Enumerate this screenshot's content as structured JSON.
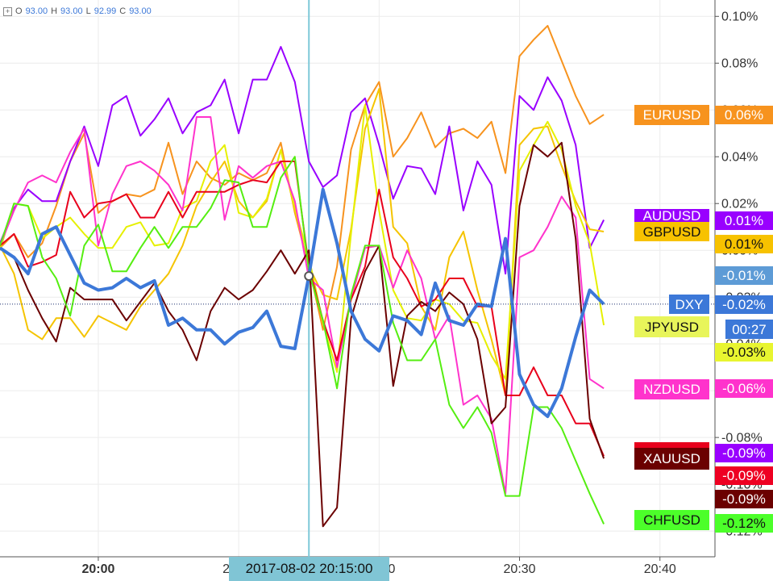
{
  "ohlc": [
    {
      "label": "O",
      "value": "93.00"
    },
    {
      "label": "H",
      "value": "93.00"
    },
    {
      "label": "L",
      "value": "92.99"
    },
    {
      "label": "C",
      "value": "93.00"
    }
  ],
  "crosshair_label": "2017-08-02 20:15:00",
  "countdown": "00:27",
  "name_tags": [
    "EURUSD",
    "AUDUSD",
    "GBPUSD",
    "DXY",
    "JPYUSD",
    "NZDUSD",
    "XAUUSD",
    "CHFUSD"
  ],
  "value_tags": [
    "0.06%",
    "0.01%",
    "0.01%",
    "-0.01%",
    "-0.02%",
    "-0.03%",
    "-0.06%",
    "-0.09%",
    "-0.09%",
    "-0.09%",
    "-0.12%"
  ],
  "chart_data": {
    "type": "line",
    "categories": [
      "19:53",
      "19:54",
      "19:55",
      "19:56",
      "19:57",
      "19:58",
      "19:59",
      "20:00",
      "20:01",
      "20:02",
      "20:03",
      "20:04",
      "20:05",
      "20:06",
      "20:07",
      "20:08",
      "20:09",
      "20:10",
      "20:11",
      "20:12",
      "20:13",
      "20:14",
      "20:15",
      "20:16",
      "20:17",
      "20:18",
      "20:19",
      "20:20",
      "20:21",
      "20:22",
      "20:23",
      "20:24",
      "20:25",
      "20:26",
      "20:27",
      "20:28",
      "20:29",
      "20:30",
      "20:31",
      "20:32",
      "20:33",
      "20:34",
      "20:35",
      "20:36"
    ],
    "xticks": [
      "20:00",
      "20:10",
      "20:20",
      "20:30",
      "20:40"
    ],
    "ylim": [
      -0.131,
      0.107
    ],
    "yticks": [
      {
        "value": 0.1,
        "label": "0.10%"
      },
      {
        "value": 0.08,
        "label": "0.08%"
      },
      {
        "value": 0.06,
        "label": "0.06%"
      },
      {
        "value": 0.04,
        "label": "0.04%"
      },
      {
        "value": 0.02,
        "label": "0.02%"
      },
      {
        "value": 0,
        "label": "0.00%"
      },
      {
        "value": -0.02,
        "label": "-0.02%"
      },
      {
        "value": -0.04,
        "label": "-0.04%"
      },
      {
        "value": -0.06,
        "label": "-0.06%"
      },
      {
        "value": -0.08,
        "label": "-0.08%"
      },
      {
        "value": -0.1,
        "label": "-0.10%"
      },
      {
        "value": -0.12,
        "label": "-0.12%"
      }
    ],
    "grid": true,
    "series": [
      {
        "name": "EURUSD",
        "color": "#f7931e",
        "values": [
          0.001,
          0.007,
          -0.003,
          0.003,
          0.019,
          0.038,
          0.05,
          0.016,
          0.021,
          0.024,
          0.023,
          0.026,
          0.046,
          0.024,
          0.038,
          0.031,
          0.028,
          0.033,
          0.03,
          0.033,
          0.046,
          0.016,
          -0.007,
          -0.034,
          -0.007,
          0.043,
          0.062,
          0.072,
          0.04,
          0.048,
          0.059,
          0.044,
          0.05,
          0.052,
          0.048,
          0.055,
          0.033,
          0.083,
          0.09,
          0.096,
          0.081,
          0.066,
          0.054,
          0.058
        ]
      },
      {
        "name": "AUDUSD",
        "color": "#9900ff",
        "values": [
          0.003,
          0.018,
          0.026,
          0.021,
          0.021,
          0.038,
          0.053,
          0.036,
          0.062,
          0.066,
          0.049,
          0.056,
          0.065,
          0.05,
          0.059,
          0.062,
          0.073,
          0.05,
          0.073,
          0.073,
          0.087,
          0.072,
          0.038,
          0.027,
          0.032,
          0.059,
          0.065,
          0.045,
          0.022,
          0.036,
          0.035,
          0.024,
          0.053,
          0.017,
          0.038,
          0.028,
          -0.01,
          0.066,
          0.06,
          0.074,
          0.064,
          0.045,
          0.001,
          0.013
        ]
      },
      {
        "name": "GBPUSD",
        "color": "#f5c400",
        "values": [
          0.002,
          -0.01,
          -0.034,
          -0.038,
          -0.029,
          -0.029,
          -0.037,
          -0.028,
          -0.031,
          -0.034,
          -0.024,
          -0.017,
          -0.01,
          0.002,
          0.019,
          0.029,
          0.038,
          0.021,
          0.014,
          0.021,
          0.043,
          0.017,
          -0.007,
          -0.019,
          -0.021,
          0.009,
          0.052,
          0.069,
          0.01,
          0.003,
          -0.024,
          -0.034,
          -0.003,
          0.008,
          -0.017,
          -0.038,
          -0.062,
          0.045,
          0.052,
          0.053,
          0.036,
          0.021,
          0.009,
          0.008
        ]
      },
      {
        "name": "JPYUSD",
        "color": "#e6f000",
        "values": [
          0.0,
          0.02,
          0.019,
          0.005,
          0.01,
          0.014,
          0.007,
          0.001,
          0.001,
          0.01,
          0.012,
          0.002,
          0.003,
          0.018,
          0.021,
          0.038,
          0.045,
          0.016,
          0.014,
          0.022,
          0.043,
          0.018,
          -0.003,
          -0.031,
          -0.052,
          0.007,
          0.062,
          0.017,
          -0.017,
          -0.029,
          -0.03,
          -0.021,
          -0.023,
          -0.03,
          -0.031,
          -0.045,
          -0.055,
          0.034,
          0.045,
          0.055,
          0.043,
          0.019,
          0.003,
          -0.032
        ]
      },
      {
        "name": "NZDUSD",
        "color": "#ff33cc",
        "values": [
          0.002,
          0.017,
          0.029,
          0.032,
          0.029,
          0.042,
          0.052,
          0.002,
          0.024,
          0.036,
          0.038,
          0.034,
          0.028,
          0.017,
          0.057,
          0.057,
          0.013,
          0.036,
          0.031,
          0.036,
          0.038,
          0.021,
          -0.012,
          -0.017,
          -0.05,
          -0.021,
          0.001,
          0.002,
          -0.016,
          0.0,
          -0.012,
          -0.038,
          -0.028,
          -0.066,
          -0.062,
          -0.072,
          -0.104,
          -0.003,
          0.0,
          0.01,
          0.023,
          0.014,
          -0.055,
          -0.059
        ]
      },
      {
        "color": "#e8001c",
        "values": [
          0.002,
          0.007,
          -0.007,
          -0.005,
          -0.002,
          0.025,
          0.014,
          0.02,
          0.021,
          0.024,
          0.014,
          0.014,
          0.025,
          0.014,
          0.025,
          0.025,
          0.025,
          0.028,
          0.03,
          0.029,
          0.038,
          0.038,
          -0.007,
          -0.03,
          -0.047,
          -0.021,
          -0.007,
          0.026,
          -0.003,
          -0.012,
          -0.024,
          -0.021,
          -0.012,
          -0.012,
          -0.024,
          -0.024,
          -0.062,
          -0.062,
          -0.05,
          -0.062,
          -0.062,
          -0.074,
          -0.074,
          -0.088
        ]
      },
      {
        "name": "XAUUSD",
        "color": "#6b0000",
        "values": [
          0.001,
          -0.003,
          -0.017,
          -0.029,
          -0.039,
          -0.016,
          -0.021,
          -0.021,
          -0.021,
          -0.03,
          -0.022,
          -0.014,
          -0.026,
          -0.034,
          -0.047,
          -0.026,
          -0.016,
          -0.021,
          -0.017,
          -0.009,
          0.0,
          -0.01,
          0.0,
          -0.118,
          -0.11,
          -0.029,
          -0.009,
          0.002,
          -0.058,
          -0.028,
          -0.022,
          -0.026,
          -0.018,
          -0.023,
          -0.038,
          -0.074,
          -0.067,
          0.019,
          0.045,
          0.04,
          0.046,
          0.005,
          -0.072,
          -0.089
        ]
      },
      {
        "name": "CHFUSD",
        "color": "#55ee11",
        "values": [
          0.002,
          0.02,
          0.019,
          -0.003,
          -0.012,
          -0.028,
          0.002,
          0.011,
          -0.009,
          -0.009,
          0.001,
          0.01,
          0.001,
          0.01,
          0.01,
          0.018,
          0.03,
          0.029,
          0.01,
          0.01,
          0.031,
          0.04,
          -0.009,
          -0.03,
          -0.059,
          -0.019,
          0.002,
          0.002,
          -0.031,
          -0.047,
          -0.047,
          -0.038,
          -0.066,
          -0.076,
          -0.067,
          -0.078,
          -0.105,
          -0.105,
          -0.067,
          -0.067,
          -0.076,
          -0.09,
          -0.104,
          -0.117
        ]
      },
      {
        "name": "DXY",
        "color": "#3c78d8",
        "values": [
          0.001,
          -0.003,
          -0.01,
          0.007,
          0.01,
          -0.002,
          -0.014,
          -0.017,
          -0.016,
          -0.012,
          -0.016,
          -0.013,
          -0.032,
          -0.029,
          -0.034,
          -0.034,
          -0.04,
          -0.035,
          -0.033,
          -0.026,
          -0.041,
          -0.042,
          -0.011,
          0.026,
          0.003,
          -0.026,
          -0.038,
          -0.043,
          -0.028,
          -0.03,
          -0.036,
          -0.014,
          -0.03,
          -0.032,
          -0.023,
          -0.024,
          0.005,
          -0.053,
          -0.066,
          -0.071,
          -0.059,
          -0.037,
          -0.017,
          -0.023
        ]
      }
    ]
  }
}
